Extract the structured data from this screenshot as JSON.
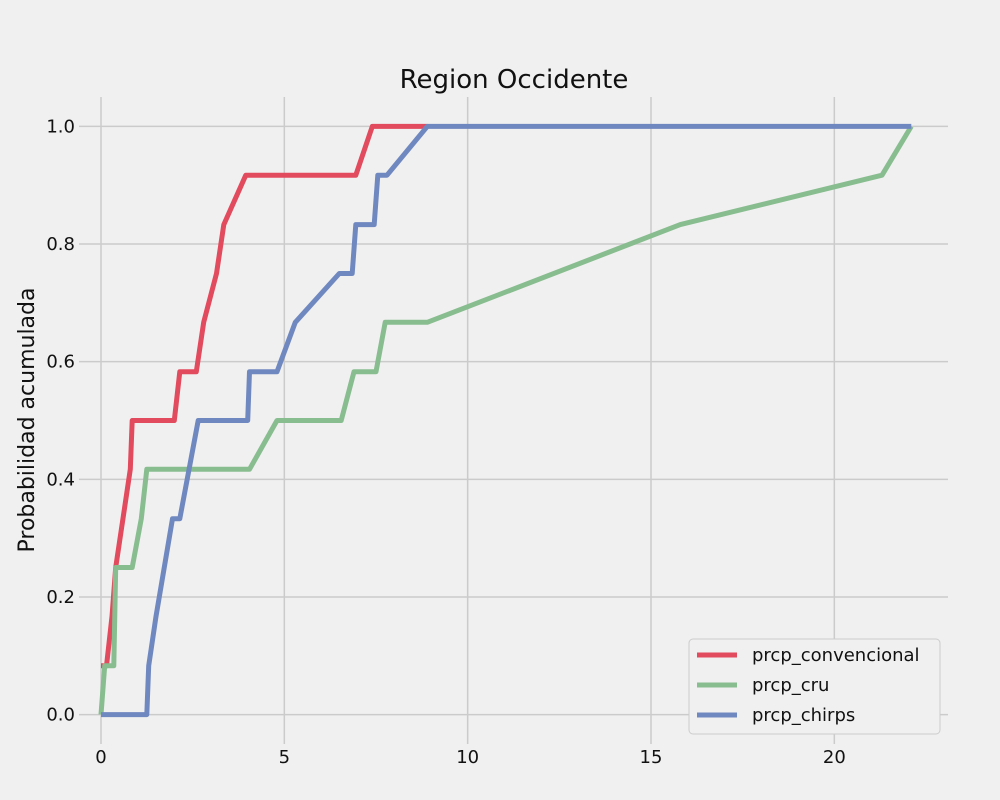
{
  "chart_data": {
    "type": "line",
    "title": "Region Occidente",
    "xlabel": "",
    "ylabel": "Probabilidad acumulada",
    "xlim": [
      -0.6,
      23.1
    ],
    "ylim": [
      -0.05,
      1.05
    ],
    "xticks": [
      0,
      5,
      10,
      15,
      20
    ],
    "xtick_labels": [
      "0",
      "5",
      "10",
      "15",
      "20"
    ],
    "yticks": [
      0.0,
      0.2,
      0.4,
      0.6,
      0.8,
      1.0
    ],
    "ytick_labels": [
      "0.0",
      "0.2",
      "0.4",
      "0.6",
      "0.8",
      "1.0"
    ],
    "grid": true,
    "legend_position": "bottom-right",
    "series": [
      {
        "name": "prcp_convencional",
        "color": "#e24a5d",
        "x": [
          0,
          0.15,
          0.3,
          0.4,
          0.8,
          0.85,
          2.0,
          2.15,
          2.6,
          2.8,
          3.15,
          3.35,
          3.95,
          6.95,
          7.4,
          8.9
        ],
        "y": [
          0.083,
          0.083,
          0.167,
          0.25,
          0.417,
          0.5,
          0.5,
          0.583,
          0.583,
          0.667,
          0.75,
          0.833,
          0.917,
          0.917,
          1.0,
          1.0
        ]
      },
      {
        "name": "prcp_cru",
        "color": "#88bd8f",
        "x": [
          0,
          0.1,
          0.35,
          0.4,
          0.85,
          1.1,
          1.25,
          4.05,
          4.8,
          6.55,
          6.9,
          7.5,
          7.75,
          8.9,
          15.8,
          21.3,
          22.1
        ],
        "y": [
          0.0,
          0.083,
          0.083,
          0.25,
          0.25,
          0.333,
          0.417,
          0.417,
          0.5,
          0.5,
          0.583,
          0.583,
          0.667,
          0.667,
          0.833,
          0.917,
          1.0
        ]
      },
      {
        "name": "prcp_chirps",
        "color": "#7088c0",
        "x": [
          0,
          1.25,
          1.3,
          1.5,
          1.95,
          2.15,
          2.65,
          4.0,
          4.05,
          4.8,
          5.3,
          6.5,
          6.85,
          6.95,
          7.45,
          7.55,
          7.8,
          8.9,
          22.1
        ],
        "y": [
          0.0,
          0.0,
          0.083,
          0.167,
          0.333,
          0.333,
          0.5,
          0.5,
          0.583,
          0.583,
          0.667,
          0.75,
          0.75,
          0.833,
          0.833,
          0.917,
          0.917,
          1.0,
          1.0
        ]
      }
    ]
  }
}
